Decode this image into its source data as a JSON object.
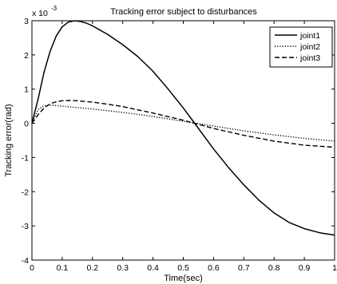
{
  "chart_data": {
    "type": "line",
    "title": "Tracking error subject to disturbances",
    "xlabel": "Time(sec)",
    "ylabel": "Tracking error(rad)",
    "y_multiplier": "x 10",
    "y_multiplier_exp": "-3",
    "xlim": [
      0,
      1
    ],
    "ylim": [
      -4,
      3
    ],
    "xticks": [
      0,
      0.1,
      0.2,
      0.3,
      0.4,
      0.5,
      0.6,
      0.7,
      0.8,
      0.9,
      1
    ],
    "xtick_labels": [
      "0",
      "0.1",
      "0.2",
      "0.3",
      "0.4",
      "0.5",
      "0.6",
      "0.7",
      "0.8",
      "0.9",
      "1"
    ],
    "yticks": [
      -4,
      -3,
      -2,
      -1,
      0,
      1,
      2,
      3
    ],
    "ytick_labels": [
      "-4",
      "-3",
      "-2",
      "-1",
      "0",
      "1",
      "2",
      "3"
    ],
    "grid": false,
    "legend_position": "top-right",
    "series": [
      {
        "name": "joint1",
        "style": "solid",
        "x": [
          0,
          0.02,
          0.04,
          0.06,
          0.08,
          0.1,
          0.12,
          0.14,
          0.16,
          0.18,
          0.2,
          0.25,
          0.3,
          0.35,
          0.4,
          0.45,
          0.5,
          0.55,
          0.6,
          0.65,
          0.7,
          0.75,
          0.8,
          0.85,
          0.9,
          0.95,
          1.0
        ],
        "y": [
          0,
          0.7,
          1.5,
          2.1,
          2.55,
          2.82,
          2.96,
          3.0,
          2.98,
          2.93,
          2.85,
          2.6,
          2.3,
          1.95,
          1.52,
          1.0,
          0.45,
          -0.15,
          -0.75,
          -1.3,
          -1.8,
          -2.25,
          -2.62,
          -2.9,
          -3.08,
          -3.2,
          -3.27
        ]
      },
      {
        "name": "joint2",
        "style": "dotted",
        "x": [
          0,
          0.02,
          0.04,
          0.06,
          0.08,
          0.1,
          0.15,
          0.2,
          0.3,
          0.4,
          0.5,
          0.6,
          0.7,
          0.8,
          0.9,
          1.0
        ],
        "y": [
          0,
          0.4,
          0.52,
          0.53,
          0.52,
          0.5,
          0.46,
          0.42,
          0.32,
          0.2,
          0.06,
          -0.08,
          -0.22,
          -0.34,
          -0.44,
          -0.52
        ]
      },
      {
        "name": "joint3",
        "style": "dashed",
        "x": [
          0,
          0.02,
          0.04,
          0.06,
          0.08,
          0.1,
          0.12,
          0.15,
          0.2,
          0.25,
          0.3,
          0.4,
          0.5,
          0.55,
          0.6,
          0.7,
          0.8,
          0.9,
          1.0
        ],
        "y": [
          0,
          0.25,
          0.45,
          0.57,
          0.63,
          0.66,
          0.67,
          0.66,
          0.62,
          0.56,
          0.49,
          0.3,
          0.09,
          -0.03,
          -0.15,
          -0.35,
          -0.52,
          -0.64,
          -0.7
        ]
      }
    ]
  }
}
